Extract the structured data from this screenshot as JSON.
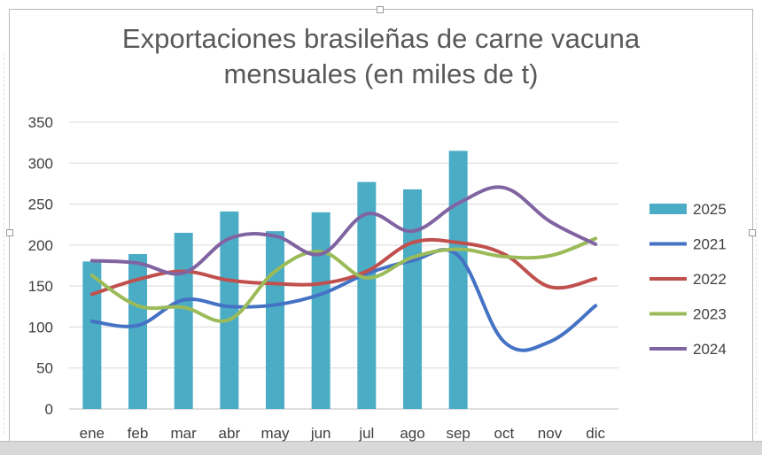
{
  "chart_data": {
    "type": "bar",
    "title_line1": "Exportaciones brasileñas de carne vacuna",
    "title_line2": "mensuales (en miles de t)",
    "categories": [
      "ene",
      "feb",
      "mar",
      "abr",
      "may",
      "jun",
      "jul",
      "ago",
      "sep",
      "oct",
      "nov",
      "dic"
    ],
    "ylim": [
      0,
      350
    ],
    "yticks": [
      "0",
      "50",
      "100",
      "150",
      "200",
      "250",
      "300",
      "350"
    ],
    "grid": true,
    "legend_position": "right",
    "bars": {
      "name": "2025",
      "color": "#4bacc6",
      "values": [
        180,
        189,
        215,
        241,
        217,
        240,
        277,
        268,
        315,
        null,
        null,
        null
      ]
    },
    "lines": [
      {
        "name": "2021",
        "color": "#4472c4",
        "values": [
          107,
          102,
          133,
          125,
          127,
          140,
          165,
          181,
          187,
          82,
          82,
          126
        ]
      },
      {
        "name": "2022",
        "color": "#c0504d",
        "values": [
          140,
          158,
          168,
          157,
          153,
          153,
          168,
          203,
          203,
          189,
          149,
          159
        ]
      },
      {
        "name": "2023",
        "color": "#9bbb59",
        "values": [
          163,
          126,
          124,
          109,
          168,
          192,
          160,
          185,
          195,
          186,
          187,
          208
        ]
      },
      {
        "name": "2024",
        "color": "#8064a2",
        "values": [
          181,
          178,
          166,
          208,
          211,
          189,
          238,
          217,
          251,
          270,
          229,
          201
        ]
      }
    ]
  }
}
